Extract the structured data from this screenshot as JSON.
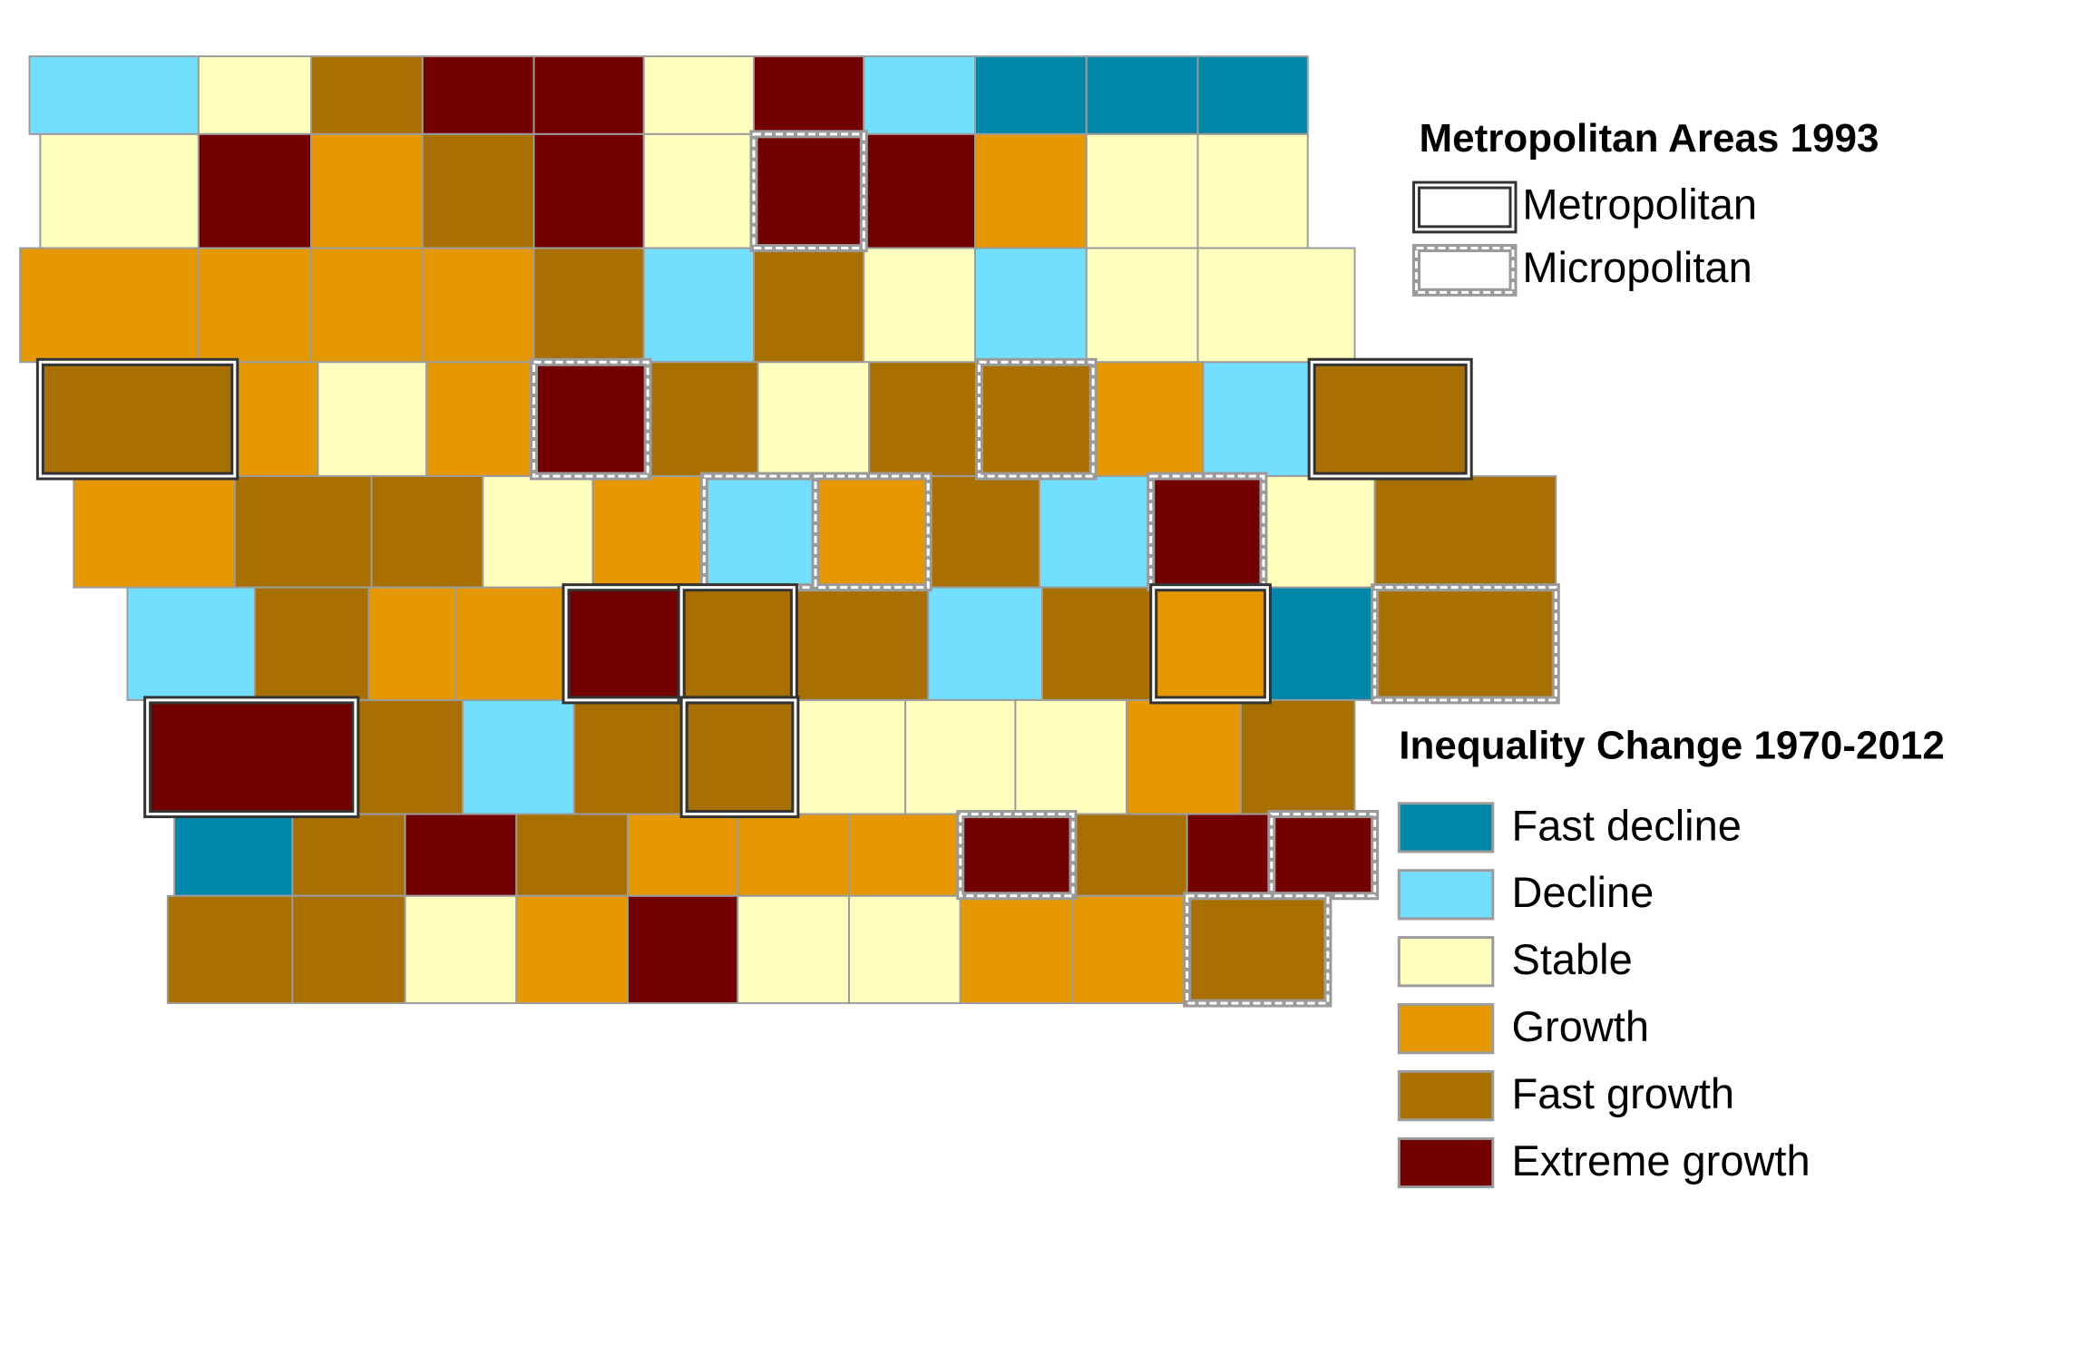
{
  "legend_metro": {
    "title": "Metropolitan Areas 1993",
    "items": [
      "Metropolitan",
      "Micropolitan"
    ]
  },
  "legend": {
    "title": "Inequality Change 1970-2012",
    "items": [
      {
        "label": "Fast decline",
        "color": "#0086a8"
      },
      {
        "label": "Decline",
        "color": "#73dfff"
      },
      {
        "label": "Stable",
        "color": "#ffffbe"
      },
      {
        "label": "Growth",
        "color": "#e69800"
      },
      {
        "label": "Fast growth",
        "color": "#a87000"
      },
      {
        "label": "Extreme growth",
        "color": "#730000"
      }
    ]
  },
  "counties": [
    [
      1,
      2,
      4,
      5,
      5,
      2,
      5,
      1,
      0,
      0,
      0
    ],
    [
      2,
      5,
      3,
      4,
      5,
      2,
      5,
      5,
      3,
      2,
      2
    ],
    [
      3,
      3,
      3,
      3,
      4,
      1,
      4,
      2,
      1,
      2,
      2
    ],
    [
      4,
      3,
      2,
      3,
      5,
      4,
      2,
      4,
      4,
      3,
      1,
      4
    ],
    [
      3,
      4,
      4,
      2,
      3,
      1,
      3,
      4,
      1,
      5,
      2,
      4
    ],
    [
      1,
      4,
      3,
      3,
      5,
      4,
      4,
      1,
      4,
      3,
      0,
      4
    ],
    [
      5,
      4,
      1,
      4,
      4,
      2,
      2,
      2,
      3,
      4
    ],
    [
      0,
      4,
      5,
      4,
      3,
      3,
      3,
      5,
      4,
      5,
      5
    ],
    [
      4,
      4,
      2,
      3,
      5,
      2,
      2,
      3,
      3,
      4
    ]
  ],
  "areas": [
    {
      "row": 1,
      "col": 6,
      "type": 1
    },
    {
      "row": 3,
      "col": 0,
      "type": 0
    },
    {
      "row": 3,
      "col": 4,
      "type": 1
    },
    {
      "row": 3,
      "col": 8,
      "type": 1
    },
    {
      "row": 3,
      "col": 11,
      "type": 0
    },
    {
      "row": 4,
      "col": 5,
      "type": 1
    },
    {
      "row": 4,
      "col": 6,
      "type": 1
    },
    {
      "row": 4,
      "col": 9,
      "type": 1
    },
    {
      "row": 5,
      "col": 4,
      "type": 0
    },
    {
      "row": 5,
      "col": 5,
      "type": 0
    },
    {
      "row": 5,
      "col": 9,
      "type": 0
    },
    {
      "row": 5,
      "col": 11,
      "type": 1
    },
    {
      "row": 6,
      "col": 0,
      "type": 0
    },
    {
      "row": 6,
      "col": 4,
      "type": 0
    },
    {
      "row": 7,
      "col": 7,
      "type": 1
    },
    {
      "row": 7,
      "col": 10,
      "type": 1
    },
    {
      "row": 8,
      "col": 9,
      "type": 1
    }
  ]
}
